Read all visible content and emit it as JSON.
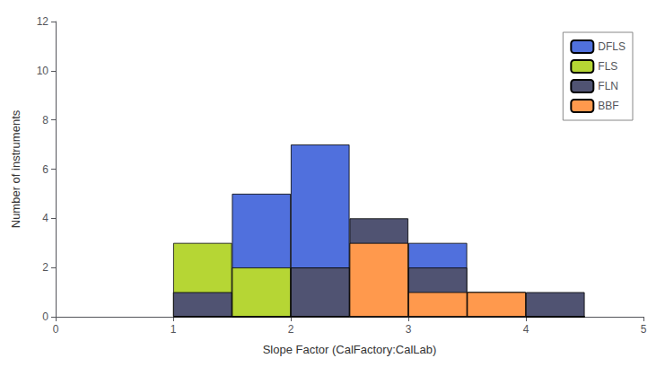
{
  "chart_data": {
    "type": "bar",
    "stacked": true,
    "xlabel": "Slope Factor (CalFactory:CalLab)",
    "ylabel": "Number of instruments",
    "x": [
      1.25,
      1.75,
      2.25,
      2.75,
      3.25,
      3.75,
      4.25
    ],
    "series": [
      {
        "name": "DFLS",
        "values": [
          1,
          5,
          7,
          1,
          3,
          1,
          0
        ]
      },
      {
        "name": "FLS",
        "values": [
          3,
          2,
          2,
          0,
          0,
          0,
          0
        ]
      },
      {
        "name": "FLN",
        "values": [
          1,
          0,
          2,
          4,
          2,
          1,
          1
        ]
      },
      {
        "name": "BBF",
        "values": [
          0,
          0,
          0,
          3,
          1,
          1,
          0
        ]
      }
    ],
    "xlim": [
      0,
      5
    ],
    "xticks": [
      0,
      1,
      2,
      3,
      4,
      5
    ],
    "ylim": [
      0,
      12
    ],
    "yticks": [
      0,
      2,
      4,
      6,
      8,
      10,
      12
    ],
    "grid": false,
    "legend": "upper right"
  }
}
